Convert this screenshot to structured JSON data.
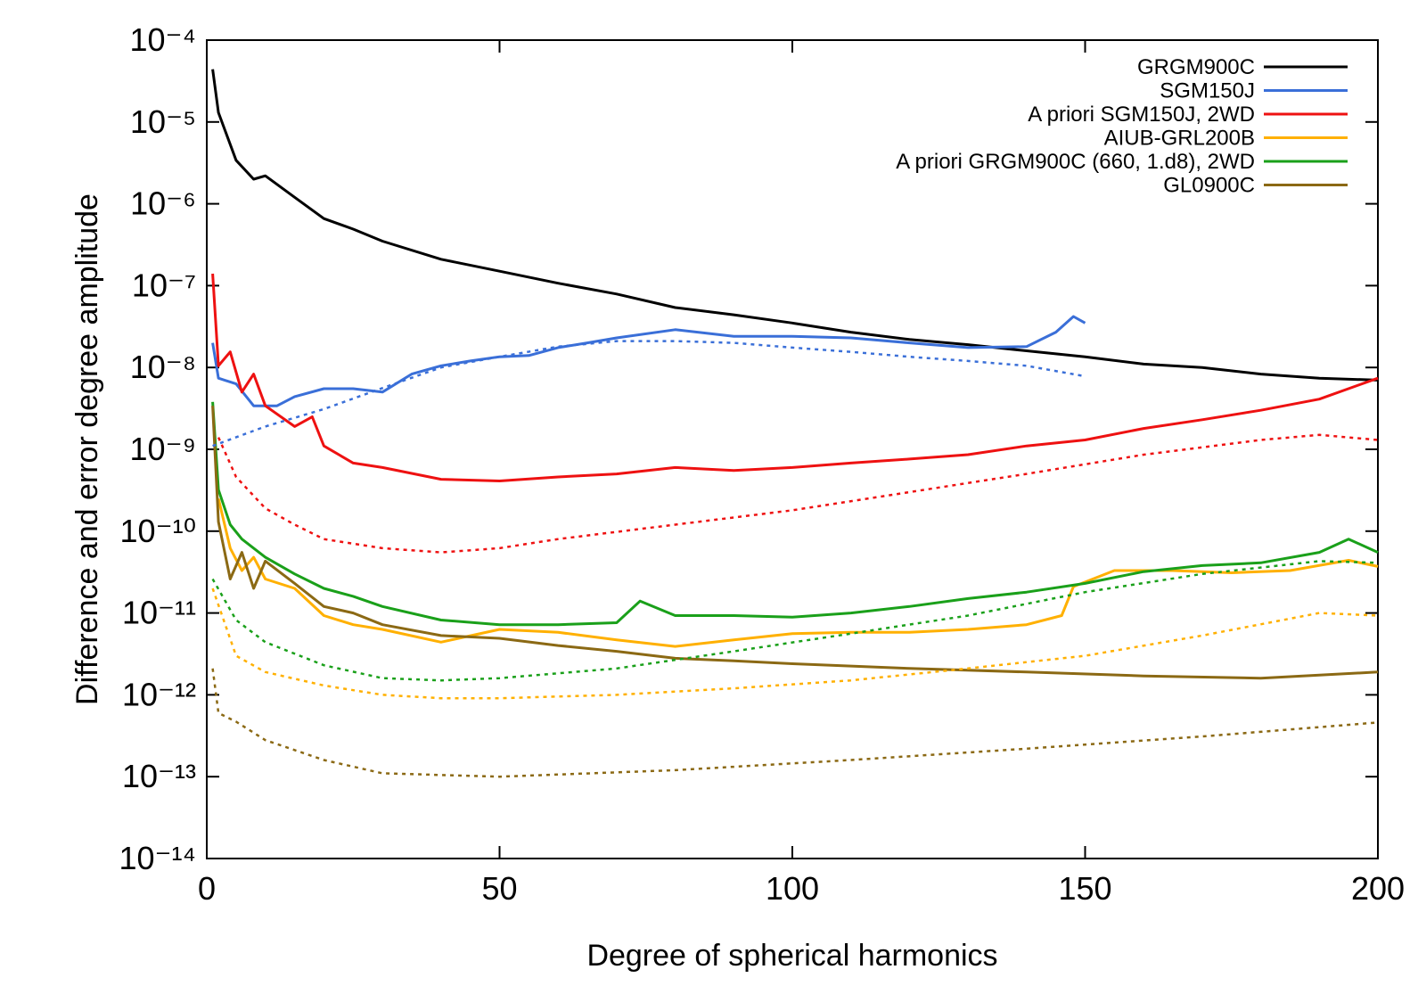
{
  "chart_data": {
    "type": "line",
    "xlabel": "Degree of spherical harmonics",
    "ylabel": "Difference and error degree amplitude",
    "xlim": [
      0,
      200
    ],
    "xticks": [
      0,
      50,
      100,
      150,
      200
    ],
    "ylim": [
      1e-14,
      0.0001
    ],
    "log_y": true,
    "yticks": [
      {
        "value": 1e-14,
        "label": "10⁻¹⁴"
      },
      {
        "value": 1e-13,
        "label": "10⁻¹³"
      },
      {
        "value": 1e-12,
        "label": "10⁻¹²"
      },
      {
        "value": 1e-11,
        "label": "10⁻¹¹"
      },
      {
        "value": 1e-10,
        "label": "10⁻¹⁰"
      },
      {
        "value": 1e-09,
        "label": "10⁻⁹"
      },
      {
        "value": 1e-08,
        "label": "10⁻⁸"
      },
      {
        "value": 1e-07,
        "label": "10⁻⁷"
      },
      {
        "value": 1e-06,
        "label": "10⁻⁶"
      },
      {
        "value": 1e-05,
        "label": "10⁻⁵"
      },
      {
        "value": 0.0001,
        "label": "10⁻⁴"
      }
    ],
    "legend": "top-right",
    "series": [
      {
        "name": "GRGM900C",
        "color": "#000000",
        "dashed": false,
        "x": [
          1,
          2,
          5,
          8,
          10,
          15,
          20,
          25,
          30,
          40,
          50,
          60,
          70,
          80,
          90,
          100,
          110,
          120,
          130,
          140,
          150,
          160,
          170,
          180,
          190,
          200
        ],
        "values": [
          4.4e-05,
          1.3e-05,
          3.4e-06,
          2e-06,
          2.2e-06,
          1.2e-06,
          6.6e-07,
          4.9e-07,
          3.5e-07,
          2.1e-07,
          1.5e-07,
          1.07e-07,
          7.9e-08,
          5.4e-08,
          4.4e-08,
          3.5e-08,
          2.7e-08,
          2.2e-08,
          1.9e-08,
          1.6e-08,
          1.35e-08,
          1.1e-08,
          1e-08,
          8.3e-09,
          7.4e-09,
          7e-09
        ]
      },
      {
        "name": "SGM150J",
        "color": "#3a6fd8",
        "dashed": false,
        "x": [
          1,
          2,
          5,
          8,
          12,
          15,
          20,
          25,
          30,
          35,
          40,
          45,
          50,
          55,
          60,
          65,
          70,
          80,
          90,
          100,
          110,
          120,
          130,
          140,
          145,
          148,
          150
        ],
        "values": [
          2e-08,
          7.4e-09,
          6.3e-09,
          3.4e-09,
          3.4e-09,
          4.4e-09,
          5.5e-09,
          5.5e-09,
          5e-09,
          8.3e-09,
          1.05e-08,
          1.2e-08,
          1.35e-08,
          1.4e-08,
          1.75e-08,
          2e-08,
          2.3e-08,
          2.9e-08,
          2.4e-08,
          2.4e-08,
          2.3e-08,
          2e-08,
          1.75e-08,
          1.8e-08,
          2.7e-08,
          4.2e-08,
          3.5e-08
        ]
      },
      {
        "name": "A priori SGM150J, 2WD",
        "color": "#ee1111",
        "dashed": false,
        "x": [
          1,
          2,
          4,
          6,
          8,
          10,
          15,
          18,
          20,
          25,
          30,
          40,
          50,
          60,
          70,
          80,
          90,
          100,
          110,
          120,
          130,
          140,
          150,
          160,
          170,
          180,
          190,
          200
        ],
        "values": [
          1.4e-07,
          1.05e-08,
          1.55e-08,
          5e-09,
          8.3e-09,
          3.4e-09,
          1.9e-09,
          2.5e-09,
          1.1e-09,
          6.8e-10,
          6e-10,
          4.3e-10,
          4.1e-10,
          4.6e-10,
          5e-10,
          6e-10,
          5.5e-10,
          6e-10,
          6.8e-10,
          7.6e-10,
          8.6e-10,
          1.1e-09,
          1.3e-09,
          1.8e-09,
          2.3e-09,
          3e-09,
          4.1e-09,
          7.4e-09
        ]
      },
      {
        "name": "AIUB-GRL200B",
        "color": "#ffb000",
        "dashed": false,
        "x": [
          2,
          4,
          6,
          8,
          10,
          15,
          20,
          25,
          30,
          40,
          50,
          60,
          70,
          80,
          90,
          100,
          110,
          120,
          130,
          140,
          146,
          148,
          155,
          165,
          175,
          185,
          195,
          200
        ],
        "values": [
          2.5e-10,
          6.2e-11,
          3.3e-11,
          4.8e-11,
          2.6e-11,
          2e-11,
          9.3e-12,
          7.2e-12,
          6.3e-12,
          4.4e-12,
          6.3e-12,
          5.8e-12,
          4.7e-12,
          3.9e-12,
          4.7e-12,
          5.6e-12,
          5.8e-12,
          5.8e-12,
          6.3e-12,
          7.2e-12,
          9.3e-12,
          2.1e-11,
          3.3e-11,
          3.3e-11,
          3.1e-11,
          3.3e-11,
          4.4e-11,
          3.7e-11
        ]
      },
      {
        "name": "A priori GRGM900C (660, 1.d8), 2WD",
        "color": "#1aa01a",
        "dashed": false,
        "x": [
          1,
          2,
          4,
          6,
          8,
          10,
          15,
          20,
          25,
          30,
          40,
          50,
          60,
          70,
          74,
          80,
          90,
          100,
          110,
          120,
          130,
          140,
          150,
          160,
          170,
          180,
          190,
          195,
          200
        ],
        "values": [
          3.8e-09,
          3.2e-10,
          1.2e-10,
          8e-11,
          6.2e-11,
          4.8e-11,
          3e-11,
          2e-11,
          1.6e-11,
          1.2e-11,
          8.2e-12,
          7.2e-12,
          7.2e-12,
          7.6e-12,
          1.4e-11,
          9.3e-12,
          9.3e-12,
          8.9e-12,
          1e-11,
          1.2e-11,
          1.5e-11,
          1.8e-11,
          2.3e-11,
          3.2e-11,
          3.8e-11,
          4.1e-11,
          5.5e-11,
          8e-11,
          5.5e-11
        ]
      },
      {
        "name": "GL0900C",
        "color": "#8b6914",
        "dashed": false,
        "x": [
          1,
          2,
          4,
          6,
          8,
          10,
          15,
          20,
          25,
          30,
          40,
          50,
          60,
          70,
          80,
          90,
          100,
          120,
          140,
          160,
          180,
          200
        ],
        "values": [
          3.4e-09,
          1.3e-10,
          2.6e-11,
          5.5e-11,
          2e-11,
          4.3e-11,
          2.3e-11,
          1.2e-11,
          1e-11,
          7.2e-12,
          5.3e-12,
          4.9e-12,
          4e-12,
          3.4e-12,
          2.8e-12,
          2.6e-12,
          2.4e-12,
          2.1e-12,
          1.9e-12,
          1.7e-12,
          1.6e-12,
          1.9e-12
        ]
      },
      {
        "color": "#3a6fd8",
        "dashed": true,
        "x": [
          1,
          10,
          20,
          30,
          40,
          50,
          60,
          70,
          80,
          90,
          100,
          110,
          120,
          130,
          140,
          150
        ],
        "values": [
          1.1e-09,
          1.9e-09,
          3.1e-09,
          5.6e-09,
          1e-08,
          1.35e-08,
          1.8e-08,
          2.1e-08,
          2.1e-08,
          2e-08,
          1.75e-08,
          1.55e-08,
          1.35e-08,
          1.2e-08,
          1.05e-08,
          7.8e-09
        ]
      },
      {
        "color": "#ee1111",
        "dashed": true,
        "x": [
          2,
          5,
          10,
          15,
          20,
          30,
          40,
          50,
          60,
          80,
          100,
          120,
          140,
          160,
          180,
          190,
          200
        ],
        "values": [
          1.4e-09,
          4.6e-10,
          1.9e-10,
          1.2e-10,
          8e-11,
          6.2e-11,
          5.5e-11,
          6.2e-11,
          8e-11,
          1.2e-10,
          1.8e-10,
          3e-10,
          5e-10,
          8.6e-10,
          1.3e-09,
          1.5e-09,
          1.3e-09
        ]
      },
      {
        "color": "#ffb000",
        "dashed": true,
        "x": [
          1,
          5,
          10,
          20,
          30,
          40,
          50,
          70,
          90,
          110,
          130,
          150,
          170,
          190,
          200
        ],
        "values": [
          2e-11,
          3e-12,
          1.9e-12,
          1.3e-12,
          1e-12,
          9.1e-13,
          9.1e-13,
          1e-12,
          1.2e-12,
          1.5e-12,
          2.1e-12,
          3e-12,
          5.3e-12,
          1e-11,
          9.3e-12
        ]
      },
      {
        "color": "#1aa01a",
        "dashed": true,
        "x": [
          1,
          5,
          10,
          20,
          30,
          40,
          50,
          70,
          90,
          110,
          130,
          150,
          170,
          190,
          200
        ],
        "values": [
          2.6e-11,
          8.2e-12,
          4.4e-12,
          2.3e-12,
          1.6e-12,
          1.5e-12,
          1.6e-12,
          2.1e-12,
          3.4e-12,
          5.6e-12,
          9.3e-12,
          1.8e-11,
          3e-11,
          4.3e-11,
          4.1e-11
        ]
      },
      {
        "color": "#8b6914",
        "dashed": true,
        "x": [
          1,
          2,
          5,
          10,
          20,
          30,
          50,
          80,
          110,
          140,
          170,
          200
        ],
        "values": [
          2.1e-12,
          6e-13,
          4.7e-13,
          2.8e-13,
          1.6e-13,
          1.1e-13,
          1e-13,
          1.2e-13,
          1.6e-13,
          2.2e-13,
          3.1e-13,
          4.6e-13
        ]
      }
    ]
  }
}
